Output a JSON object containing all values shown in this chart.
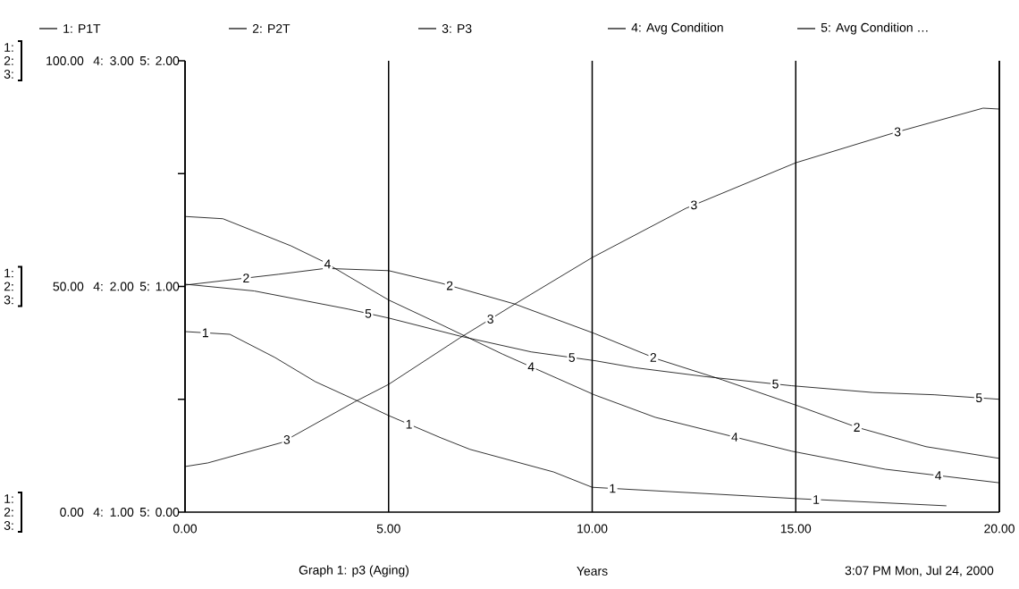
{
  "chart_data": {
    "type": "line",
    "title": "Graph 1: p3 (Aging)",
    "subtitle": "3:07 PM   Mon, Jul 24, 2000",
    "xlabel": "Years",
    "xlim": [
      0,
      20
    ],
    "xticks": [
      {
        "value": 0,
        "label": "0.00"
      },
      {
        "value": 5,
        "label": "5.00"
      },
      {
        "value": 10,
        "label": "10.00"
      },
      {
        "value": 15,
        "label": "15.00"
      },
      {
        "value": 20,
        "label": "20.00"
      }
    ],
    "ylim": [
      0,
      100
    ],
    "yticks": [
      {
        "value": 0,
        "label": "0.00"
      },
      {
        "value": 25,
        "label": null
      },
      {
        "value": 50,
        "label": "50.00"
      },
      {
        "value": 75,
        "label": null
      },
      {
        "value": 100,
        "label": "100.00"
      }
    ],
    "y2lim": [
      1,
      3
    ],
    "y2ticks": [
      {
        "value": 1,
        "label": "1.00"
      },
      {
        "value": 2,
        "label": "2.00"
      },
      {
        "value": 3,
        "label": "3.00"
      }
    ],
    "y3lim": [
      0,
      2
    ],
    "y3ticks": [
      {
        "value": 0,
        "label": "0.00"
      },
      {
        "value": 1,
        "label": "1.00"
      },
      {
        "value": 2,
        "label": "2.00"
      }
    ],
    "grid": "x",
    "legend": "top",
    "series": [
      {
        "name": "1: P1T",
        "color": "#000000",
        "x": [
          0,
          1.1,
          2.2,
          3.2,
          4.15,
          5,
          6.3,
          7,
          9.05,
          10,
          10.4,
          15,
          18.7
        ],
        "values": [
          40,
          39.4,
          34.3,
          28.9,
          25,
          21.4,
          16.4,
          13.9,
          8.9,
          5.5,
          5.3,
          3,
          1.4
        ]
      },
      {
        "name": "2: P2T",
        "color": "#000000",
        "x": [
          0,
          2.3,
          3.45,
          5,
          6.3,
          8.1,
          10.05,
          11.6,
          13.2,
          15.1,
          16.5,
          18.2,
          20
        ],
        "values": [
          50.3,
          52.7,
          54,
          53.5,
          50.7,
          46.1,
          39.6,
          33.9,
          29.3,
          23.4,
          18.8,
          14.5,
          11.9
        ]
      },
      {
        "name": "3: P3",
        "color": "#000000",
        "x": [
          0,
          0.56,
          2.37,
          4.16,
          5,
          6.75,
          8.1,
          10,
          12.3,
          15,
          17.4,
          19.6,
          20
        ],
        "values": [
          10.1,
          10.9,
          15.4,
          24.4,
          28.3,
          38.6,
          46.1,
          56.4,
          67.3,
          77.4,
          84,
          89.5,
          89.3
        ]
      },
      {
        "name": "4: Avg Condition",
        "color": "#000000",
        "axis": "y2",
        "x": [
          0,
          0.93,
          2.6,
          3.4,
          5,
          6.3,
          7.8,
          10.05,
          11.55,
          14.9,
          17.2,
          20
        ],
        "values": [
          2.31,
          2.3,
          2.18,
          2.11,
          1.94,
          1.83,
          1.7,
          1.52,
          1.42,
          1.27,
          1.19,
          1.13
        ]
      },
      {
        "name": "5: Avg Condition …",
        "color": "#000000",
        "axis": "y3",
        "x": [
          0,
          1.7,
          4,
          5,
          6.75,
          8.5,
          10.1,
          11.05,
          12.8,
          14.9,
          16.9,
          18.4,
          20
        ],
        "values": [
          1.01,
          0.98,
          0.9,
          0.86,
          0.78,
          0.71,
          0.67,
          0.64,
          0.6,
          0.56,
          0.53,
          0.52,
          0.5
        ]
      }
    ],
    "annotations": [
      "1",
      "1",
      "1",
      "1",
      "2",
      "2",
      "2",
      "2",
      "3",
      "3",
      "3",
      "3",
      "4",
      "4",
      "4",
      "4",
      "5",
      "5",
      "5",
      "5",
      "1:",
      "2:",
      "3:",
      "4:",
      "5:",
      "1:",
      "2:",
      "3:",
      "4:",
      "5:",
      "1:",
      "2:",
      "3:",
      "4:",
      "5:"
    ]
  }
}
